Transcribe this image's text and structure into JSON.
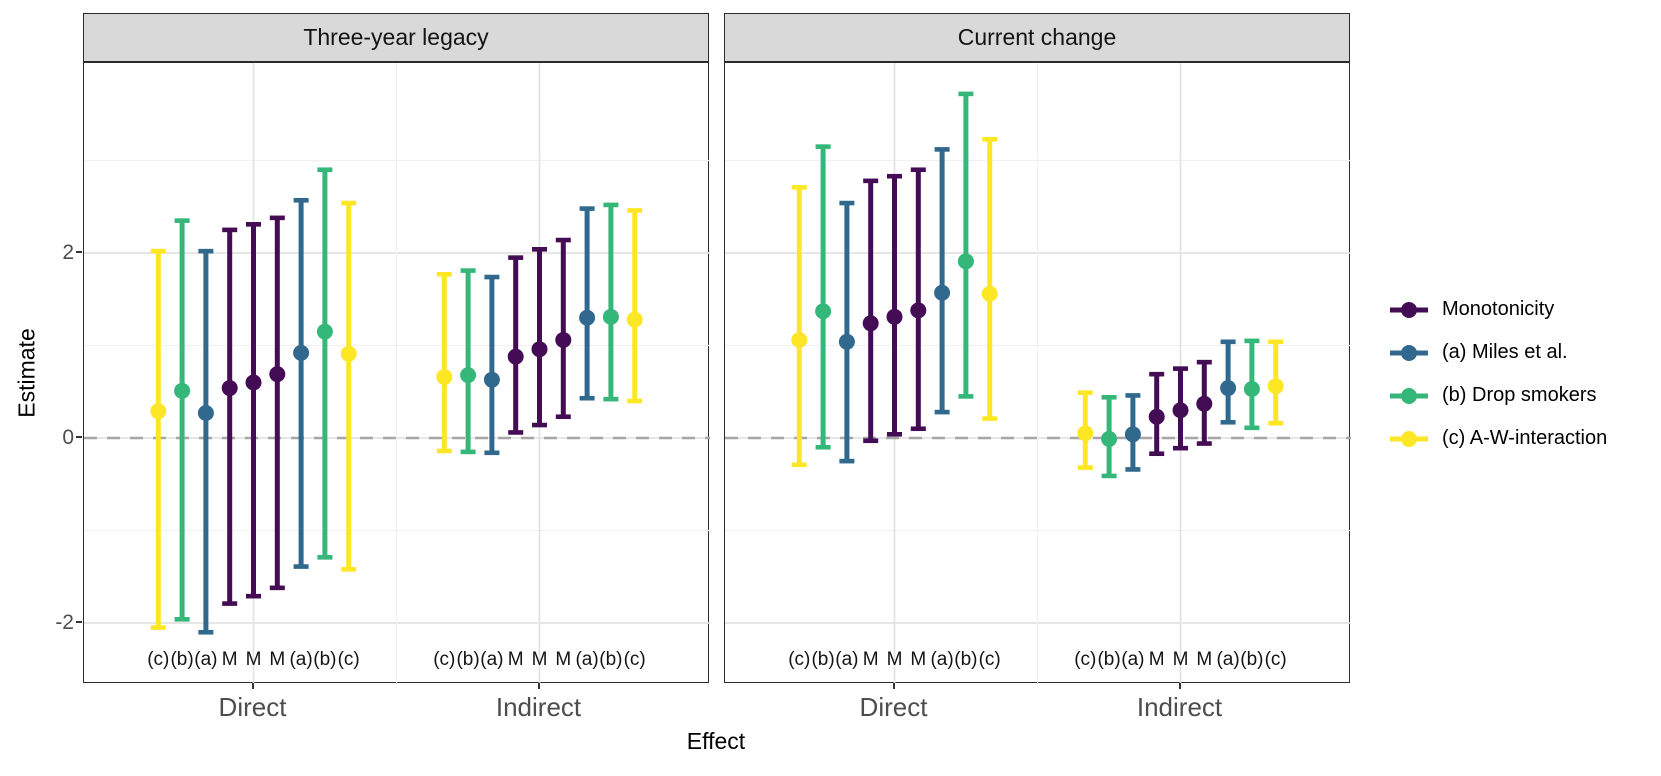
{
  "axes": {
    "y_title": "Estimate",
    "x_title": "Effect",
    "y_ticks": [
      {
        "label": "2",
        "value": 2
      },
      {
        "label": "0",
        "value": 0
      },
      {
        "label": "-2",
        "value": -2
      }
    ],
    "y_minor": [
      3,
      1,
      -1
    ],
    "zero_line_value": 0
  },
  "categories": [
    "Direct",
    "Indirect"
  ],
  "facets": [
    {
      "title": "Three-year legacy"
    },
    {
      "title": "Current change"
    }
  ],
  "legend": {
    "items": [
      {
        "key": "M",
        "label": "Monotonicity",
        "color": "#440C54"
      },
      {
        "key": "a",
        "label": "(a) Miles et al.",
        "color": "#31688E"
      },
      {
        "key": "b",
        "label": "(b) Drop smokers",
        "color": "#35B779"
      },
      {
        "key": "c",
        "label": "(c) A-W-interaction",
        "color": "#FDE725"
      }
    ]
  },
  "palette": {
    "M": "#440C54",
    "a": "#31688E",
    "b": "#35B779",
    "c": "#FDE725"
  },
  "chart_data": {
    "type": "pointrange",
    "title": "",
    "xlabel": "Effect",
    "ylabel": "Estimate",
    "ylim": [
      -2.66,
      4.05
    ],
    "y_breaks": [
      -2,
      0,
      2
    ],
    "y_minor_breaks": [
      -1,
      1,
      3
    ],
    "zero_reference_line": 0,
    "legend_position": "right",
    "grid": true,
    "sub_labels": [
      "(c)",
      "(b)",
      "(a)",
      "M",
      "M",
      "M",
      "(a)",
      "(b)",
      "(c)"
    ],
    "facets": [
      {
        "title": "Three-year legacy",
        "groups": [
          {
            "category": "Direct",
            "points": [
              {
                "label": "(c)",
                "key": "c",
                "estimate": 0.29,
                "lower": -2.05,
                "upper": 2.02
              },
              {
                "label": "(b)",
                "key": "b",
                "estimate": 0.51,
                "lower": -1.96,
                "upper": 2.35
              },
              {
                "label": "(a)",
                "key": "a",
                "estimate": 0.27,
                "lower": -2.1,
                "upper": 2.02
              },
              {
                "label": "M",
                "key": "M",
                "estimate": 0.54,
                "lower": -1.79,
                "upper": 2.25
              },
              {
                "label": "M",
                "key": "M",
                "estimate": 0.6,
                "lower": -1.71,
                "upper": 2.31
              },
              {
                "label": "M",
                "key": "M",
                "estimate": 0.69,
                "lower": -1.62,
                "upper": 2.38
              },
              {
                "label": "(a)",
                "key": "a",
                "estimate": 0.92,
                "lower": -1.39,
                "upper": 2.57
              },
              {
                "label": "(b)",
                "key": "b",
                "estimate": 1.15,
                "lower": -1.29,
                "upper": 2.9
              },
              {
                "label": "(c)",
                "key": "c",
                "estimate": 0.91,
                "lower": -1.42,
                "upper": 2.54
              }
            ]
          },
          {
            "category": "Indirect",
            "points": [
              {
                "label": "(c)",
                "key": "c",
                "estimate": 0.66,
                "lower": -0.14,
                "upper": 1.77
              },
              {
                "label": "(b)",
                "key": "b",
                "estimate": 0.68,
                "lower": -0.15,
                "upper": 1.81
              },
              {
                "label": "(a)",
                "key": "a",
                "estimate": 0.63,
                "lower": -0.16,
                "upper": 1.74
              },
              {
                "label": "M",
                "key": "M",
                "estimate": 0.88,
                "lower": 0.06,
                "upper": 1.95
              },
              {
                "label": "M",
                "key": "M",
                "estimate": 0.96,
                "lower": 0.14,
                "upper": 2.04
              },
              {
                "label": "M",
                "key": "M",
                "estimate": 1.06,
                "lower": 0.23,
                "upper": 2.14
              },
              {
                "label": "(a)",
                "key": "a",
                "estimate": 1.3,
                "lower": 0.43,
                "upper": 2.48
              },
              {
                "label": "(b)",
                "key": "b",
                "estimate": 1.31,
                "lower": 0.42,
                "upper": 2.52
              },
              {
                "label": "(c)",
                "key": "c",
                "estimate": 1.28,
                "lower": 0.4,
                "upper": 2.46
              }
            ]
          }
        ]
      },
      {
        "title": "Current change",
        "groups": [
          {
            "category": "Direct",
            "points": [
              {
                "label": "(c)",
                "key": "c",
                "estimate": 1.06,
                "lower": -0.29,
                "upper": 2.71
              },
              {
                "label": "(b)",
                "key": "b",
                "estimate": 1.37,
                "lower": -0.1,
                "upper": 3.15
              },
              {
                "label": "(a)",
                "key": "a",
                "estimate": 1.04,
                "lower": -0.25,
                "upper": 2.54
              },
              {
                "label": "M",
                "key": "M",
                "estimate": 1.24,
                "lower": -0.03,
                "upper": 2.78
              },
              {
                "label": "M",
                "key": "M",
                "estimate": 1.31,
                "lower": 0.04,
                "upper": 2.83
              },
              {
                "label": "M",
                "key": "M",
                "estimate": 1.38,
                "lower": 0.1,
                "upper": 2.9
              },
              {
                "label": "(a)",
                "key": "a",
                "estimate": 1.57,
                "lower": 0.28,
                "upper": 3.12
              },
              {
                "label": "(b)",
                "key": "b",
                "estimate": 1.91,
                "lower": 0.45,
                "upper": 3.72
              },
              {
                "label": "(c)",
                "key": "c",
                "estimate": 1.56,
                "lower": 0.21,
                "upper": 3.23
              }
            ]
          },
          {
            "category": "Indirect",
            "points": [
              {
                "label": "(c)",
                "key": "c",
                "estimate": 0.05,
                "lower": -0.32,
                "upper": 0.49
              },
              {
                "label": "(b)",
                "key": "b",
                "estimate": -0.01,
                "lower": -0.41,
                "upper": 0.44
              },
              {
                "label": "(a)",
                "key": "a",
                "estimate": 0.04,
                "lower": -0.34,
                "upper": 0.46
              },
              {
                "label": "M",
                "key": "M",
                "estimate": 0.23,
                "lower": -0.17,
                "upper": 0.69
              },
              {
                "label": "M",
                "key": "M",
                "estimate": 0.3,
                "lower": -0.11,
                "upper": 0.75
              },
              {
                "label": "M",
                "key": "M",
                "estimate": 0.37,
                "lower": -0.06,
                "upper": 0.82
              },
              {
                "label": "(a)",
                "key": "a",
                "estimate": 0.54,
                "lower": 0.17,
                "upper": 1.04
              },
              {
                "label": "(b)",
                "key": "b",
                "estimate": 0.53,
                "lower": 0.11,
                "upper": 1.05
              },
              {
                "label": "(c)",
                "key": "c",
                "estimate": 0.56,
                "lower": 0.16,
                "upper": 1.04
              }
            ]
          }
        ]
      }
    ]
  }
}
